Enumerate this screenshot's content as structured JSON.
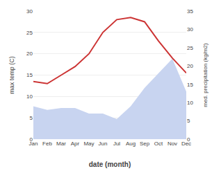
{
  "chart_data": {
    "type": "line",
    "xlabel": "date (month)",
    "ylabel": "max temp (C)",
    "y2label": "med. precipitation (kg/m2)",
    "categories": [
      "Jan",
      "Feb",
      "Mar",
      "Apr",
      "May",
      "Jun",
      "Jul",
      "Aug",
      "Sep",
      "Oct",
      "Nov",
      "Dec"
    ],
    "series": [
      {
        "type": "area",
        "axis": "y2",
        "color": "#c8d4f0",
        "values": [
          9.0,
          8.0,
          8.5,
          8.5,
          7.0,
          7.0,
          5.5,
          9.0,
          14.0,
          18.0,
          22.0,
          13.0
        ]
      },
      {
        "type": "line",
        "color": "#cc3333",
        "values": [
          13.5,
          13.0,
          15.0,
          17.0,
          20.0,
          25.0,
          28.0,
          28.5,
          27.5,
          23.0,
          19.0,
          15.5
        ]
      }
    ],
    "ylim": [
      0,
      30
    ],
    "yticks": [
      0,
      5,
      10,
      15,
      20,
      25,
      30
    ],
    "y2lim": [
      0,
      35
    ],
    "y2ticks": [
      0,
      5,
      10,
      15,
      20,
      25,
      30,
      35
    ],
    "grid": true
  }
}
